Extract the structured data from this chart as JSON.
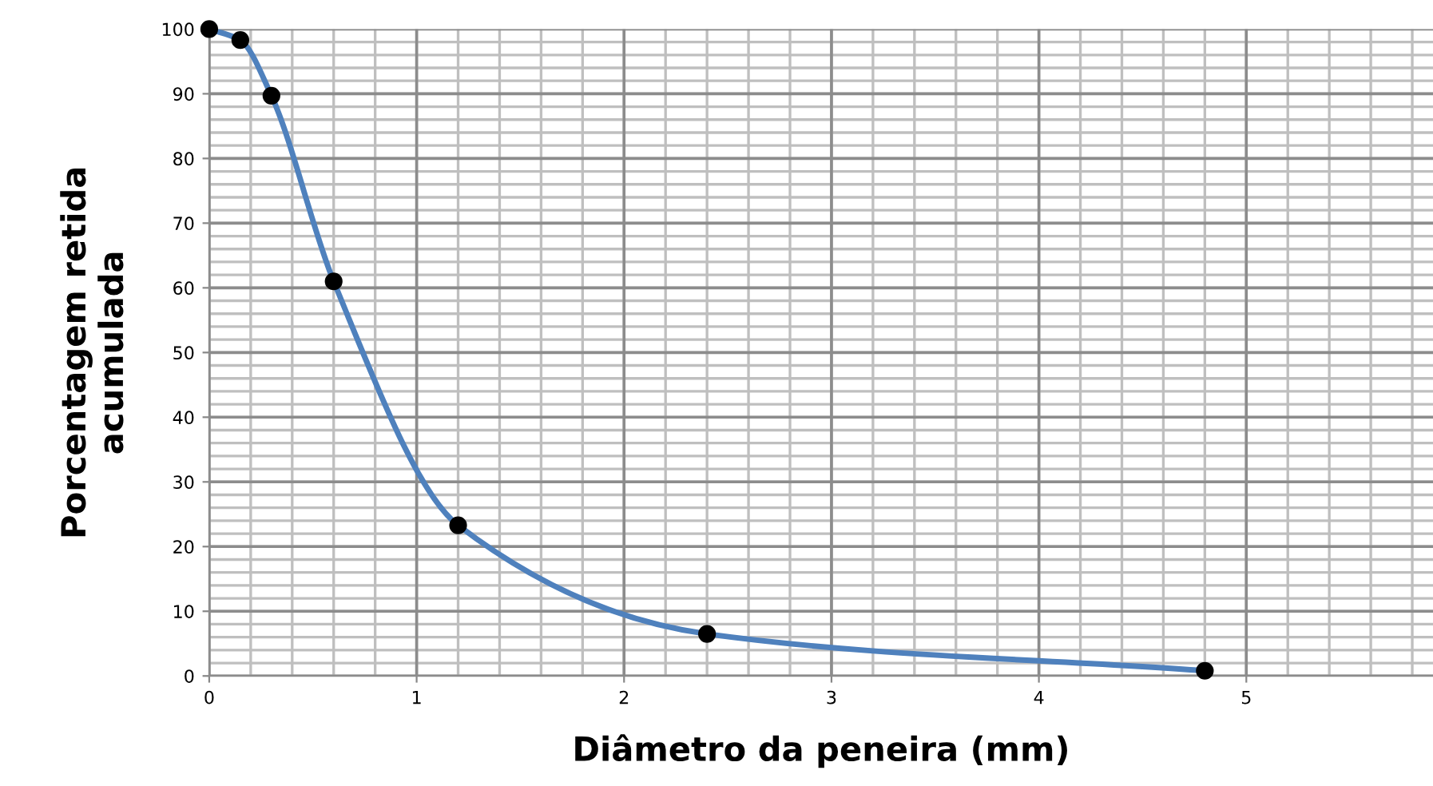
{
  "chart_data": {
    "type": "line",
    "xlabel": "Diâmetro da peneira (mm)",
    "ylabel": "Porcentagem retida\nacumulada",
    "x": [
      0,
      0.15,
      0.3,
      0.6,
      1.2,
      2.4,
      4.8
    ],
    "series": [
      {
        "color": "#4f81bd",
        "values": [
          100,
          98.3,
          89.7,
          61,
          23.3,
          6.5,
          0.8
        ]
      }
    ],
    "marker": "circle",
    "line_style": "solid",
    "xlim": [
      0,
      5.9
    ],
    "xticks": [
      0,
      1,
      2,
      3,
      4,
      5
    ],
    "ylim": [
      0,
      100
    ],
    "yticks": [
      0,
      10,
      20,
      30,
      40,
      50,
      60,
      70,
      80,
      90,
      100
    ],
    "grid": true,
    "legend": false
  }
}
